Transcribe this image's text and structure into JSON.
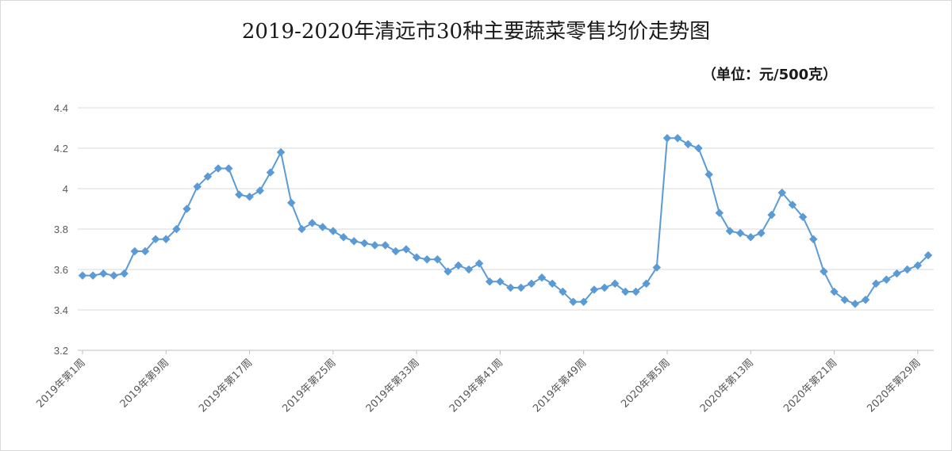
{
  "chart_data": {
    "type": "line",
    "title": "2019-2020年清远市30种主要蔬菜零售均价走势图",
    "unit_label": "（单位：元/500克）",
    "xlabel": "",
    "ylabel": "",
    "ylim": [
      3.2,
      4.4
    ],
    "yticks": [
      "3.2",
      "3.4",
      "3.6",
      "3.8",
      "4",
      "4.2",
      "4.4"
    ],
    "grid": true,
    "color": "#5b9bd5",
    "x_tick_labels": [
      "2019年第1周",
      "2019年第9周",
      "2019年第17周",
      "2019年第25周",
      "2019年第33周",
      "2019年第41周",
      "2019年第49周",
      "2020年第5周",
      "2020年第13周",
      "2020年第21周",
      "2020年第29周"
    ],
    "series": [
      {
        "values": [
          3.57,
          3.57,
          3.58,
          3.57,
          3.58,
          3.69,
          3.69,
          3.75,
          3.75,
          3.8,
          3.9,
          4.01,
          4.06,
          4.1,
          4.1,
          3.97,
          3.96,
          3.99,
          4.08,
          4.18,
          3.93,
          3.8,
          3.83,
          3.81,
          3.79,
          3.76,
          3.74,
          3.73,
          3.72,
          3.72,
          3.69,
          3.7,
          3.66,
          3.65,
          3.65,
          3.59,
          3.62,
          3.6,
          3.63,
          3.54,
          3.54,
          3.51,
          3.51,
          3.53,
          3.56,
          3.53,
          3.49,
          3.44,
          3.44,
          3.5,
          3.51,
          3.53,
          3.49,
          3.49,
          3.53,
          3.61,
          4.25,
          4.25,
          4.22,
          4.2,
          4.07,
          3.88,
          3.79,
          3.78,
          3.76,
          3.78,
          3.87,
          3.98,
          3.92,
          3.86,
          3.75,
          3.59,
          3.49,
          3.45,
          3.43,
          3.45,
          3.53,
          3.55,
          3.58,
          3.6,
          3.62,
          3.67
        ]
      }
    ]
  }
}
